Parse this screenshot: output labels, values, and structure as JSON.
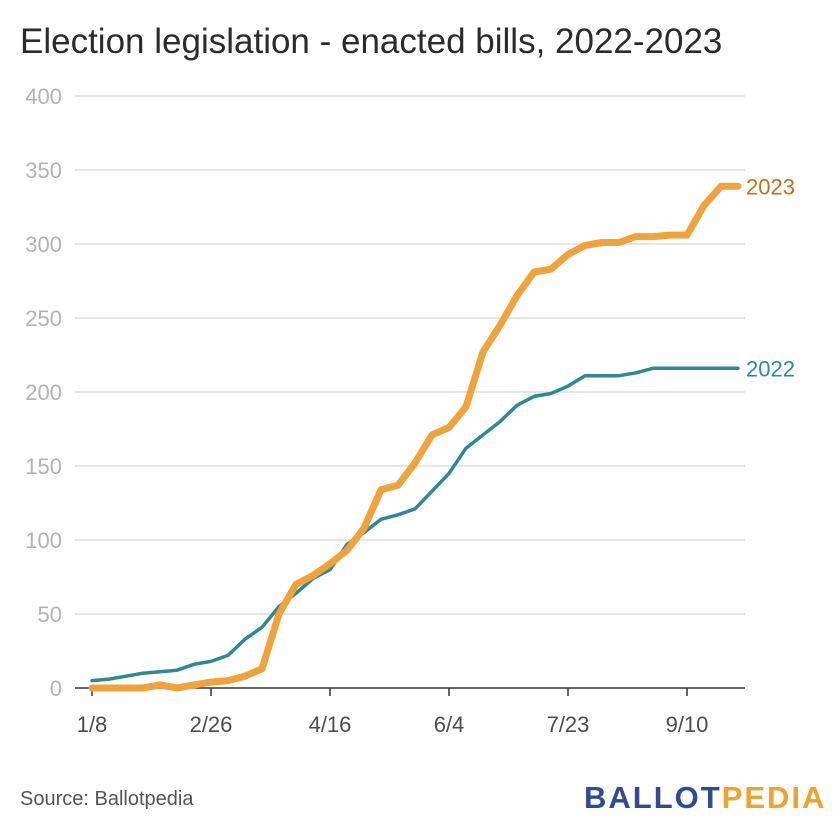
{
  "chart_data": {
    "type": "line",
    "title": "Election legislation - enacted bills, 2022-2023",
    "xlabel": "",
    "ylabel": "",
    "ylim": [
      0,
      400
    ],
    "y_ticks": [
      0,
      50,
      100,
      150,
      200,
      250,
      300,
      350,
      400
    ],
    "x_tick_labels": [
      "1/8",
      "2/26",
      "4/16",
      "6/4",
      "7/23",
      "9/10"
    ],
    "x_unit": "week index (weekly points starting 1/8)",
    "grid": "horizontal",
    "legend": "direct labels at line ends",
    "series": [
      {
        "name": "2022",
        "color": "#2e8a92",
        "x": [
          0,
          1,
          2,
          3,
          4,
          5,
          6,
          7,
          8,
          9,
          10,
          11,
          12,
          13,
          14,
          15,
          16,
          17,
          18,
          19,
          20,
          21,
          22,
          23,
          24,
          25,
          26,
          27,
          28,
          29,
          30,
          31,
          32,
          33,
          34,
          35,
          36,
          37,
          38
        ],
        "values": [
          5,
          6,
          8,
          10,
          11,
          12,
          16,
          18,
          22,
          33,
          41,
          55,
          64,
          74,
          80,
          97,
          105,
          114,
          117,
          121,
          133,
          145,
          162,
          171,
          180,
          191,
          197,
          199,
          204,
          211,
          211,
          211,
          213,
          216,
          216,
          216,
          216,
          216,
          216
        ]
      },
      {
        "name": "2023",
        "color": "#efa33a",
        "x": [
          0,
          1,
          2,
          3,
          4,
          5,
          6,
          7,
          8,
          9,
          10,
          11,
          12,
          13,
          14,
          15,
          16,
          17,
          18,
          19,
          20,
          21,
          22,
          23,
          24,
          25,
          26,
          27,
          28,
          29,
          30,
          31,
          32,
          33,
          34,
          35,
          36,
          37,
          38
        ],
        "values": [
          0,
          0,
          0,
          0,
          2,
          0,
          2,
          4,
          5,
          8,
          13,
          50,
          70,
          76,
          84,
          93,
          108,
          134,
          137,
          152,
          171,
          176,
          190,
          227,
          245,
          265,
          281,
          283,
          293,
          299,
          301,
          301,
          305,
          305,
          306,
          306,
          326,
          339,
          339
        ]
      }
    ]
  },
  "source": "Source: Ballotpedia",
  "logo": {
    "part1": "BALLOT",
    "part2": "PEDIA"
  }
}
